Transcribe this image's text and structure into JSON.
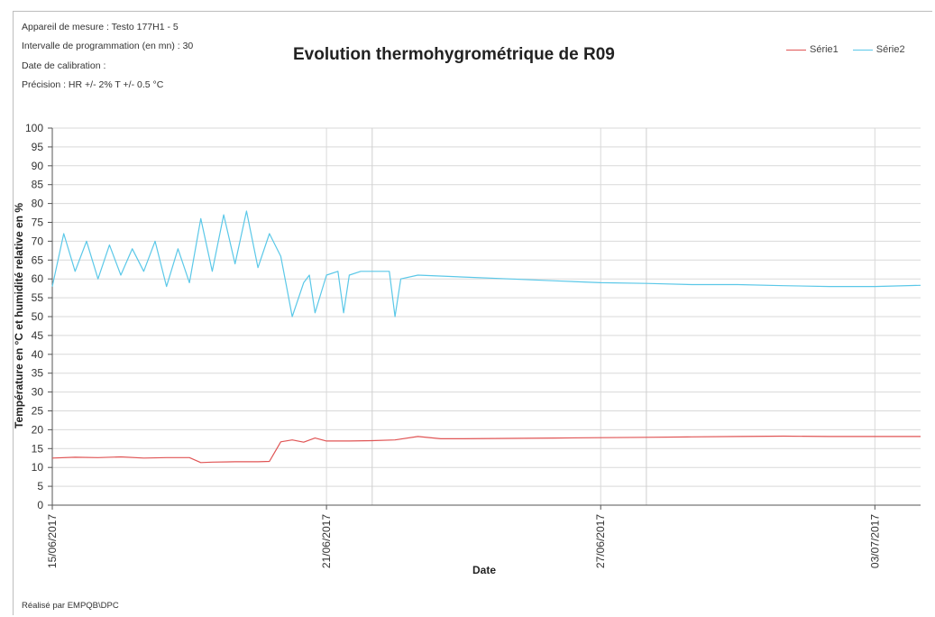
{
  "header": {
    "line1": "Appareil de mesure : Testo 177H1 - 5",
    "line2": "Intervalle de programmation (en mn) : 30",
    "line3": "Date de calibration :",
    "line4": "Précision : HR +/- 2% T +/- 0.5 °C"
  },
  "footer": "Réalisé par EMPQB\\DPC",
  "chart_data": {
    "type": "line",
    "title": "Evolution thermohygrométrique de  R09",
    "xlabel": "Date",
    "ylabel": "Température en °C et humidité relative en %",
    "ylim": [
      0,
      100
    ],
    "yticks": [
      0,
      5,
      10,
      15,
      20,
      25,
      30,
      35,
      40,
      45,
      50,
      55,
      60,
      65,
      70,
      75,
      80,
      85,
      90,
      95,
      100
    ],
    "xlim": [
      "15/06/2017",
      "04/07/2017"
    ],
    "xtick_labels": [
      "15/06/2017",
      "21/06/2017",
      "27/06/2017",
      "03/07/2017"
    ],
    "grid": true,
    "legend_position": "top-right",
    "series": [
      {
        "name": "Série1",
        "color": "#e05555",
        "x": [
          "2017-06-15",
          "2017-06-15T12:00",
          "2017-06-16",
          "2017-06-16T12:00",
          "2017-06-17",
          "2017-06-17T12:00",
          "2017-06-18",
          "2017-06-18T06:00",
          "2017-06-18T12:00",
          "2017-06-19",
          "2017-06-19T12:00",
          "2017-06-19T18:00",
          "2017-06-20",
          "2017-06-20T06:00",
          "2017-06-20T12:00",
          "2017-06-20T18:00",
          "2017-06-21",
          "2017-06-21T12:00",
          "2017-06-22",
          "2017-06-22T12:00",
          "2017-06-23",
          "2017-06-23T12:00",
          "2017-06-24",
          "2017-06-25",
          "2017-06-26",
          "2017-06-27",
          "2017-06-28",
          "2017-06-29",
          "2017-06-30",
          "2017-07-01",
          "2017-07-02",
          "2017-07-03",
          "2017-07-04"
        ],
        "y": [
          12.5,
          12.7,
          12.6,
          12.8,
          12.5,
          12.6,
          12.6,
          11.3,
          11.4,
          11.5,
          11.5,
          11.6,
          16.8,
          17.3,
          16.7,
          17.8,
          17.0,
          17.0,
          17.1,
          17.3,
          18.2,
          17.6,
          17.6,
          17.7,
          17.8,
          17.9,
          18.0,
          18.1,
          18.2,
          18.3,
          18.2,
          18.2,
          18.2
        ]
      },
      {
        "name": "Série2",
        "color": "#5bc8e8",
        "x": [
          "2017-06-15",
          "2017-06-15T06:00",
          "2017-06-15T12:00",
          "2017-06-15T18:00",
          "2017-06-16",
          "2017-06-16T06:00",
          "2017-06-16T12:00",
          "2017-06-16T18:00",
          "2017-06-17",
          "2017-06-17T06:00",
          "2017-06-17T12:00",
          "2017-06-17T18:00",
          "2017-06-18",
          "2017-06-18T06:00",
          "2017-06-18T12:00",
          "2017-06-18T18:00",
          "2017-06-19",
          "2017-06-19T06:00",
          "2017-06-19T12:00",
          "2017-06-19T18:00",
          "2017-06-20",
          "2017-06-20T03:00",
          "2017-06-20T06:00",
          "2017-06-20T12:00",
          "2017-06-20T15:00",
          "2017-06-20T18:00",
          "2017-06-21",
          "2017-06-21T06:00",
          "2017-06-21T09:00",
          "2017-06-21T12:00",
          "2017-06-21T18:00",
          "2017-06-22",
          "2017-06-22T09:00",
          "2017-06-22T12:00",
          "2017-06-22T15:00",
          "2017-06-23",
          "2017-06-24",
          "2017-06-25",
          "2017-06-26",
          "2017-06-27",
          "2017-06-28",
          "2017-06-29",
          "2017-06-30",
          "2017-07-01",
          "2017-07-02",
          "2017-07-03",
          "2017-07-04"
        ],
        "y": [
          58,
          72,
          62,
          70,
          60,
          69,
          61,
          68,
          62,
          70,
          58,
          68,
          59,
          76,
          62,
          77,
          64,
          78,
          63,
          72,
          66,
          58,
          50,
          59,
          61,
          51,
          61,
          62,
          51,
          61,
          62,
          62,
          62,
          50,
          60,
          61,
          60.5,
          60,
          59.5,
          59,
          58.8,
          58.5,
          58.5,
          58.2,
          58,
          58,
          58.3
        ]
      }
    ]
  }
}
